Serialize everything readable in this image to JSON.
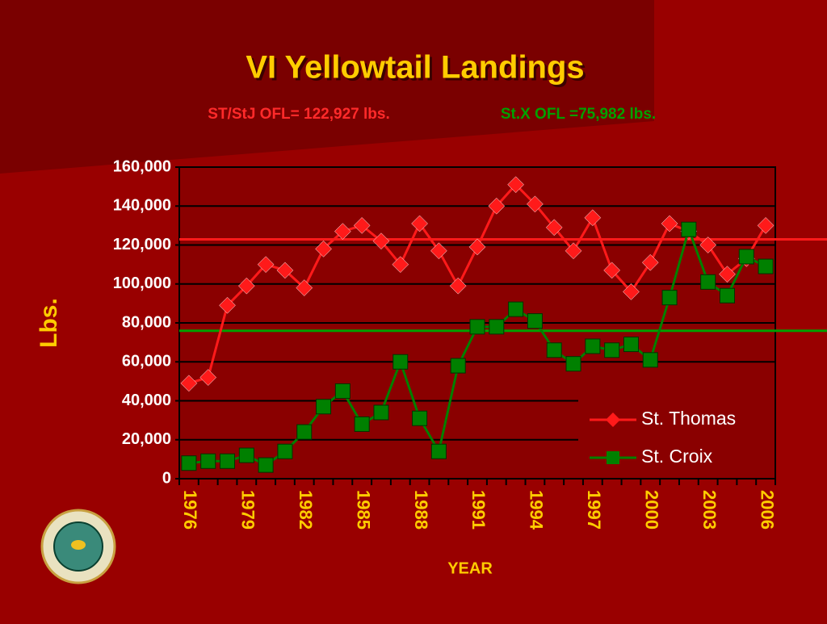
{
  "chart_data": {
    "type": "line",
    "title": "VI Yellowtail Landings",
    "subtitles": [
      {
        "text": "ST/StJ OFL= 122,927 lbs.",
        "color": "#ff2a2a"
      },
      {
        "text": "St.X OFL =75,982 lbs.",
        "color": "#00a000"
      }
    ],
    "y_label": "Lbs.",
    "x_label": "YEAR",
    "categories": [
      "1976",
      null,
      null,
      "1979",
      null,
      null,
      "1982",
      null,
      null,
      "1985",
      null,
      null,
      "1988",
      null,
      null,
      "1991",
      null,
      null,
      "1994",
      null,
      null,
      "1997",
      null,
      null,
      "2000",
      null,
      null,
      "2003",
      null,
      null,
      "2006"
    ],
    "series": [
      {
        "name": "St. Thomas",
        "color": "#ff1a1a",
        "marker": "diamond",
        "values": [
          49000,
          52000,
          89000,
          99000,
          110000,
          107000,
          98000,
          118000,
          127000,
          130000,
          122000,
          110000,
          131000,
          117000,
          99000,
          119000,
          140000,
          151000,
          141000,
          129000,
          117000,
          134000,
          107000,
          96000,
          111000,
          131000,
          127000,
          120000,
          105000,
          113000,
          130000
        ]
      },
      {
        "name": "St. Croix",
        "color": "#008000",
        "marker": "square",
        "values": [
          8000,
          9000,
          9000,
          12000,
          7000,
          14000,
          24000,
          37000,
          45000,
          28000,
          34000,
          60000,
          31000,
          14000,
          58000,
          78000,
          78000,
          87000,
          81000,
          66000,
          59000,
          68000,
          66000,
          69000,
          61000,
          93000,
          128000,
          101000,
          94000,
          114000,
          109000
        ]
      }
    ],
    "reference_lines": [
      {
        "value": 122927,
        "color": "#ff1a1a"
      },
      {
        "value": 75982,
        "color": "#00a000"
      }
    ],
    "ylim": [
      0,
      160000
    ],
    "yticks": [
      {
        "value": 0,
        "label": "0"
      },
      {
        "value": 20000,
        "label": "20,000"
      },
      {
        "value": 40000,
        "label": "40,000"
      },
      {
        "value": 60000,
        "label": "60,000"
      },
      {
        "value": 80000,
        "label": "80,000"
      },
      {
        "value": 100000,
        "label": "100,000"
      },
      {
        "value": 120000,
        "label": "120,000"
      },
      {
        "value": 140000,
        "label": "140,000"
      },
      {
        "value": 160000,
        "label": "160,000"
      }
    ],
    "grid": true,
    "legend": "lower right"
  }
}
